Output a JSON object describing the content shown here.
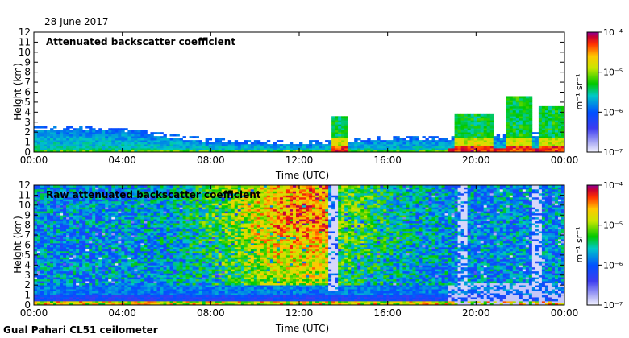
{
  "figure": {
    "date": "28 June 2017",
    "footer": "Gual Pahari CL51 ceilometer"
  },
  "chart_data": [
    {
      "type": "heatmap",
      "title": "Attenuated backscatter coefficient",
      "xlabel": "Time (UTC)",
      "ylabel": "Height (km)",
      "x_ticks": [
        "00:00",
        "04:00",
        "08:00",
        "12:00",
        "16:00",
        "20:00",
        "00:00"
      ],
      "x_range_hours": [
        0,
        24
      ],
      "y_ticks": [
        0,
        1,
        2,
        3,
        4,
        5,
        6,
        7,
        8,
        9,
        10,
        11,
        12
      ],
      "ylim": [
        0,
        12
      ],
      "colorbar": {
        "unit": "m⁻¹ sr⁻¹",
        "scale": "log",
        "range": [
          1e-07,
          0.0001
        ],
        "tick_labels": [
          "10⁻⁴",
          "10⁻⁵",
          "10⁻⁶",
          "10⁻⁷"
        ]
      },
      "features": {
        "boundary_layer_top_km": [
          [
            0,
            2.3
          ],
          [
            4,
            2.1
          ],
          [
            6,
            1.5
          ],
          [
            8,
            1.0
          ],
          [
            12,
            0.7
          ],
          [
            14,
            1.0
          ],
          [
            16,
            1.2
          ],
          [
            18.7,
            1.2
          ],
          [
            24,
            1.8
          ]
        ],
        "convective_events": [
          {
            "start_hour": 13.4,
            "end_hour": 14.2,
            "top_km": 3.5
          },
          {
            "start_hour": 19.0,
            "end_hour": 20.8,
            "top_km": 3.8
          },
          {
            "start_hour": 21.3,
            "end_hour": 22.5,
            "top_km": 5.5
          },
          {
            "start_hour": 22.8,
            "end_hour": 24.0,
            "top_km": 4.5
          }
        ]
      }
    },
    {
      "type": "heatmap",
      "title": "Raw attenuated backscatter coefficient",
      "xlabel": "Time (UTC)",
      "ylabel": "Height (km)",
      "x_ticks": [
        "00:00",
        "04:00",
        "08:00",
        "12:00",
        "16:00",
        "20:00",
        "00:00"
      ],
      "x_range_hours": [
        0,
        24
      ],
      "y_ticks": [
        0,
        1,
        2,
        3,
        4,
        5,
        6,
        7,
        8,
        9,
        10,
        11,
        12
      ],
      "ylim": [
        0,
        12
      ],
      "colorbar": {
        "unit": "m⁻¹ sr⁻¹",
        "scale": "log",
        "range": [
          1e-07,
          0.0001
        ],
        "tick_labels": [
          "10⁻⁴",
          "10⁻⁵",
          "10⁻⁶",
          "10⁻⁷"
        ]
      },
      "features": {
        "high_signal_peak_hour": 12.3,
        "clear_gaps_hours": [
          13.6,
          19.4,
          22.8
        ]
      }
    }
  ]
}
